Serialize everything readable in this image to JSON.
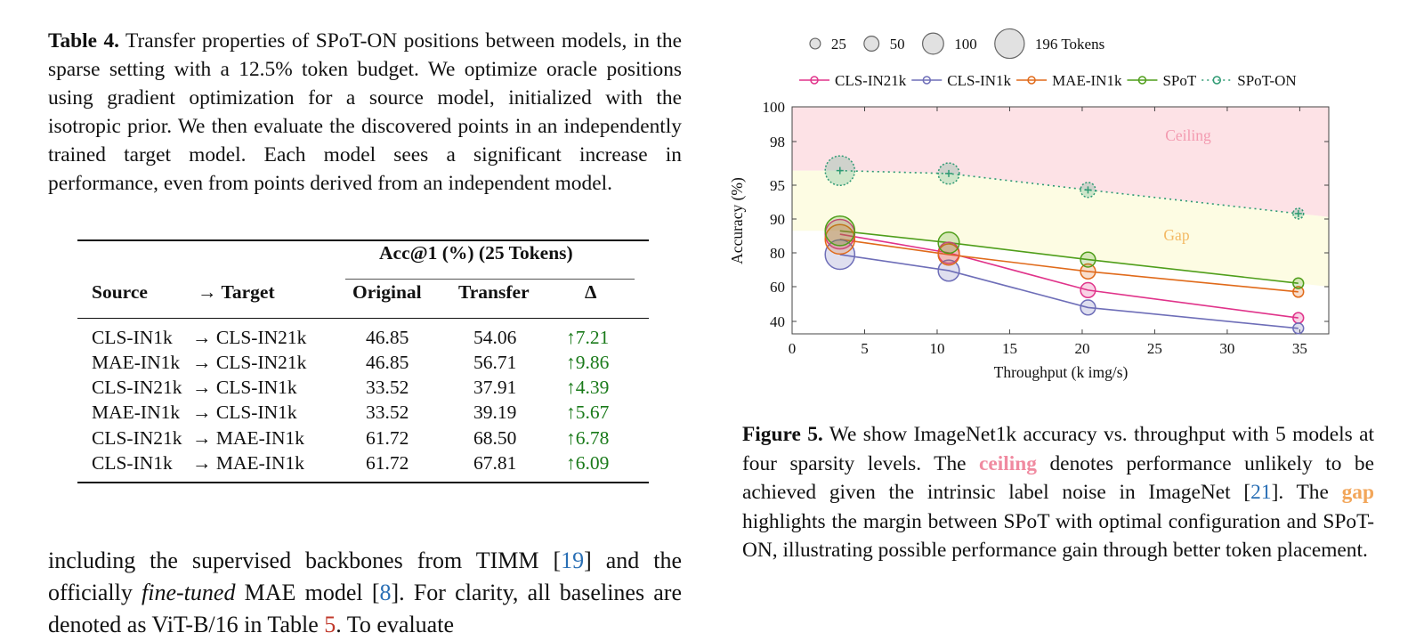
{
  "table4": {
    "caption_label": "Table 4.",
    "caption_text": "Transfer properties of SPoT-ON positions between models, in the sparse setting with a 12.5% token budget. We optimize oracle positions using gradient optimization for a source model, initialized with the isotropic prior. We then evaluate the discovered points in an independently trained target model. Each model sees a significant increase in performance, even from points derived from an independent model.",
    "group_header": "Acc@1 (%) (25 Tokens)",
    "col_source": "Source",
    "col_target": "→ Target",
    "col_original": "Original",
    "col_transfer": "Transfer",
    "col_delta": "Δ",
    "rows": [
      {
        "source": "CLS-IN1k",
        "target": "→ CLS-IN21k",
        "original": "46.85",
        "transfer": "54.06",
        "delta": "↑7.21"
      },
      {
        "source": "MAE-IN1k",
        "target": "→ CLS-IN21k",
        "original": "46.85",
        "transfer": "56.71",
        "delta": "↑9.86"
      },
      {
        "source": "CLS-IN21k",
        "target": "→ CLS-IN1k",
        "original": "33.52",
        "transfer": "37.91",
        "delta": "↑4.39"
      },
      {
        "source": "MAE-IN1k",
        "target": "→ CLS-IN1k",
        "original": "33.52",
        "transfer": "39.19",
        "delta": "↑5.67"
      },
      {
        "source": "CLS-IN21k",
        "target": "→ MAE-IN1k",
        "original": "61.72",
        "transfer": "68.50",
        "delta": "↑6.78"
      },
      {
        "source": "CLS-IN1k",
        "target": "→ MAE-IN1k",
        "original": "61.72",
        "transfer": "67.81",
        "delta": "↑6.09"
      }
    ]
  },
  "body_text": {
    "part1": "including the supervised backbones from TIMM [",
    "cite1": "19",
    "part2": "] and the officially ",
    "italic": "fine-tuned",
    "part3": " MAE model [",
    "cite2": "8",
    "part4": "]. For clarity, all baselines are denoted as ViT-B/16 in Table ",
    "cite3": "5",
    "part5": ". To evaluate"
  },
  "figure5": {
    "caption_label": "Figure 5.",
    "caption_part1": "We show ImageNet1k accuracy vs. throughput with 5 models at four sparsity levels. The ",
    "ceiling_word": "ceiling",
    "caption_part2": " denotes performance unlikely to be achieved given the intrinsic label noise in ImageNet [",
    "cite": "21",
    "caption_part3": "]. The ",
    "gap_word": "gap",
    "caption_part4": " highlights the margin between SPoT with optimal configuration and SPoT-ON, illustrating possible performance gain through better token placement."
  },
  "chart_data": {
    "type": "scatter",
    "xlabel": "Throughput (k img/s)",
    "ylabel": "Accuracy (%)",
    "xlim": [
      0,
      37
    ],
    "x_ticks": [
      0,
      5,
      10,
      15,
      20,
      25,
      30,
      35
    ],
    "y_ticks": [
      40,
      60,
      80,
      90,
      95,
      98,
      100
    ],
    "size_legend": {
      "values": [
        25,
        50,
        100,
        196
      ],
      "labels": [
        "25",
        "50",
        "100",
        "196 Tokens"
      ]
    },
    "regions": [
      {
        "name": "Ceiling",
        "color": "#fde2e6",
        "label_color": "#f39ab0"
      },
      {
        "name": "Gap",
        "color": "#fdfce3",
        "label_color": "#f3b964"
      }
    ],
    "series": [
      {
        "name": "CLS-IN21k",
        "color": "#e0338a",
        "style": "solid",
        "x": [
          3.3,
          10.8,
          20.4,
          34.9
        ],
        "y": [
          85.5,
          80.0,
          58.0,
          42.0
        ],
        "tokens": [
          196,
          100,
          50,
          25
        ]
      },
      {
        "name": "CLS-IN1k",
        "color": "#6e6eb8",
        "style": "solid",
        "x": [
          3.3,
          10.8,
          20.4,
          34.9
        ],
        "y": [
          79.0,
          69.5,
          48.0,
          36.0
        ],
        "tokens": [
          196,
          100,
          50,
          25
        ]
      },
      {
        "name": "MAE-IN1k",
        "color": "#e06a1a",
        "style": "solid",
        "x": [
          3.3,
          10.8,
          20.4,
          34.9
        ],
        "y": [
          84.0,
          79.0,
          69.0,
          57.0
        ],
        "tokens": [
          196,
          100,
          50,
          25
        ]
      },
      {
        "name": "SPoT",
        "color": "#4f9e1a",
        "style": "solid",
        "x": [
          3.3,
          10.8,
          20.4,
          34.9
        ],
        "y": [
          86.5,
          83.0,
          76.0,
          62.0
        ],
        "tokens": [
          196,
          100,
          50,
          25
        ]
      },
      {
        "name": "SPoT-ON",
        "color": "#2e9a73",
        "style": "dotted",
        "x": [
          3.3,
          10.8,
          20.4,
          34.9
        ],
        "y": [
          96.0,
          95.8,
          94.3,
          90.8
        ],
        "tokens": [
          196,
          100,
          50,
          25
        ]
      }
    ]
  }
}
